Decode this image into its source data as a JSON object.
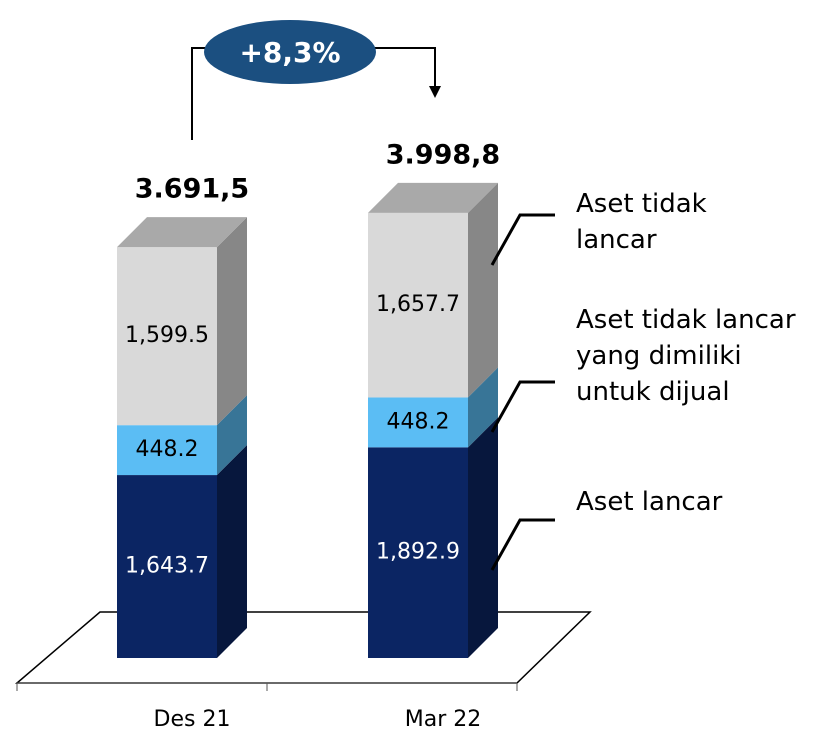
{
  "chart_data": {
    "type": "stacked_bar_3d",
    "categories": [
      "Des 21",
      "Mar 22"
    ],
    "series": [
      {
        "name": "Aset lancar",
        "color": "#0b2563",
        "values": [
          1643.7,
          1892.9
        ],
        "value_labels": [
          "1,643.7",
          "1,892.9"
        ]
      },
      {
        "name": "Aset tidak lancar yang dimiliki untuk dijual",
        "color": "#5bbdf4",
        "values": [
          448.2,
          448.2
        ]
      },
      {
        "name": "Aset tidak lancar",
        "color": "#d9d9d9",
        "values": [
          1599.5,
          1657.7
        ],
        "value_labels": [
          "1,599.5",
          "1,657.7"
        ]
      }
    ],
    "totals": {
      "values": [
        3691.5,
        3998.8
      ],
      "value_labels": [
        "3.691,5",
        "3.998,8"
      ]
    },
    "annotation": "+8,3%"
  }
}
